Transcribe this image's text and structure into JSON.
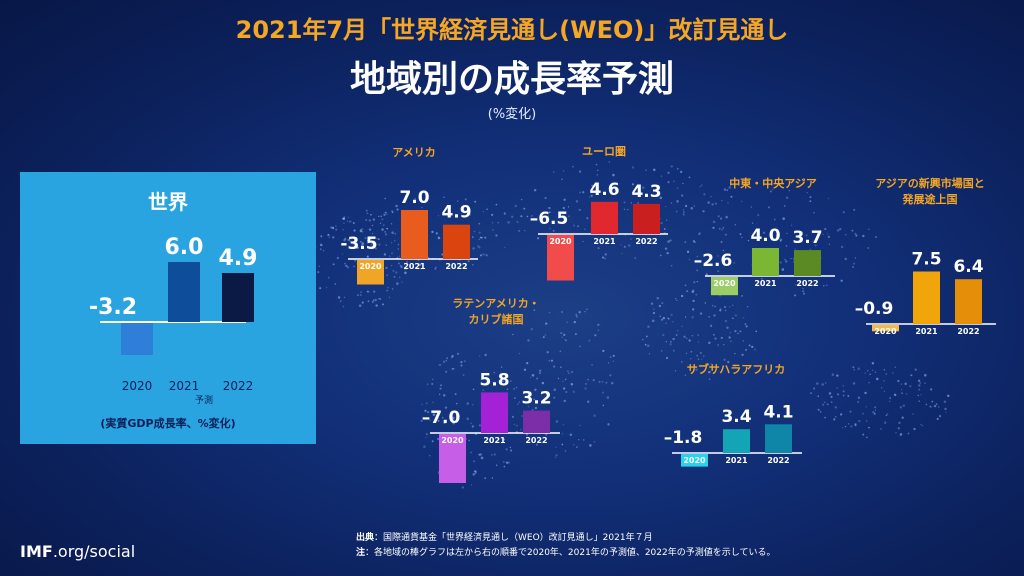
{
  "header": {
    "supertitle": "2021年7月「世界経済見通し(WEO)」改訂見通し",
    "title": "地域別の成長率予測",
    "unit": "(%変化)"
  },
  "world_panel": {
    "forecast_label": "予測",
    "footnote": "(実質GDP成長率、%変化)"
  },
  "footer": {
    "logo_bold": "IMF",
    "logo_rest": ".org/social",
    "source_label": "出典",
    "source_text": "：国際通貨基金「世界経済見通し（WEO）改訂見通し」2021年７月",
    "note_label": "注",
    "note_text": "：各地域の棒グラフは左から右の順番で2020年、2021年の予測値、2022年の予測値を示している。"
  },
  "colors": {
    "background": "#0b1f58",
    "accent_title": "#f5a623",
    "world_panel": "#29a4e0"
  },
  "chart_data": [
    {
      "type": "bar",
      "title": "世界",
      "categories": [
        "2020",
        "2021",
        "2022"
      ],
      "values": [
        -3.2,
        6.0,
        4.9
      ],
      "value_labels": [
        "-3.2",
        "6.0",
        "4.9"
      ],
      "colors": [
        "#2f7fd8",
        "#0e4d9a",
        "#0a1a45"
      ]
    },
    {
      "type": "bar",
      "title": "アメリカ",
      "categories": [
        "2020",
        "2021",
        "2022"
      ],
      "values": [
        -3.5,
        7.0,
        4.9
      ],
      "value_labels": [
        "-3.5",
        "7.0",
        "4.9"
      ],
      "colors": [
        "#f0a526",
        "#e85d1e",
        "#d9440f"
      ]
    },
    {
      "type": "bar",
      "title": "ユーロ圏",
      "categories": [
        "2020",
        "2021",
        "2022"
      ],
      "values": [
        -6.5,
        4.6,
        4.3
      ],
      "value_labels": [
        "–6.5",
        "4.6",
        "4.3"
      ],
      "colors": [
        "#f24b4b",
        "#e0282e",
        "#c91f1f"
      ]
    },
    {
      "type": "bar",
      "title": "中東・中央アジア",
      "categories": [
        "2020",
        "2021",
        "2022"
      ],
      "values": [
        -2.6,
        4.0,
        3.7
      ],
      "value_labels": [
        "–2.6",
        "4.0",
        "3.7"
      ],
      "colors": [
        "#9ccc65",
        "#7cb733",
        "#5c8a22"
      ]
    },
    {
      "type": "bar",
      "title": "アジアの新興市場国と発展途上国",
      "title_lines": [
        "アジアの新興市場国と",
        "発展途上国"
      ],
      "categories": [
        "2020",
        "2021",
        "2022"
      ],
      "values": [
        -0.9,
        7.5,
        6.4
      ],
      "value_labels": [
        "–0.9",
        "7.5",
        "6.4"
      ],
      "colors": [
        "#f5b84a",
        "#f0a50a",
        "#e58e0a"
      ]
    },
    {
      "type": "bar",
      "title": "ラテンアメリカ・カリブ諸国",
      "title_lines": [
        "ラテンアメリカ・",
        "カリブ諸国"
      ],
      "categories": [
        "2020",
        "2021",
        "2022"
      ],
      "values": [
        -7.0,
        5.8,
        3.2
      ],
      "value_labels": [
        "–7.0",
        "5.8",
        "3.2"
      ],
      "colors": [
        "#c75ee8",
        "#a422d6",
        "#7c2ea8"
      ]
    },
    {
      "type": "bar",
      "title": "サブサハラアフリカ",
      "categories": [
        "2020",
        "2021",
        "2022"
      ],
      "values": [
        -1.8,
        3.4,
        4.1
      ],
      "value_labels": [
        "–1.8",
        "3.4",
        "4.1"
      ],
      "colors": [
        "#27d3ee",
        "#13a4b6",
        "#0f86a8"
      ]
    }
  ]
}
